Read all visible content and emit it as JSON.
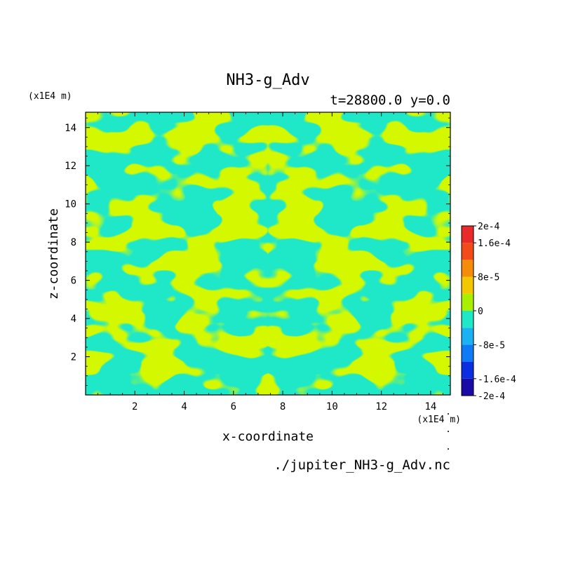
{
  "chart_data": {
    "type": "heatmap",
    "title": "NH3-g_Adv",
    "subtitle": "t=28800.0 y=0.0",
    "xlabel": "x-coordinate",
    "ylabel": "z-coordinate",
    "x_unit": "(x1E4 m)",
    "y_unit": "(x1E4 m)",
    "xlim": [
      0.0,
      14.8
    ],
    "ylim": [
      0.0,
      14.8
    ],
    "x_ticks": [
      "2",
      "4",
      "6",
      "8",
      "10",
      "12",
      "14"
    ],
    "y_ticks": [
      "2",
      "4",
      "6",
      "8",
      "10",
      "12",
      "14"
    ],
    "x_tick_values": [
      2,
      4,
      6,
      8,
      10,
      12,
      14
    ],
    "y_tick_values": [
      2,
      4,
      6,
      8,
      10,
      12,
      14
    ],
    "source_file": "./jupiter_NH3-g_Adv.nc",
    "field_note": "field mirror-symmetric about x=7.4; values alternate between the 0..4e-5 (yellow-green) and -4e-5..0 (cyan) contour bands",
    "colorbar": {
      "levels": [
        -0.0002,
        -0.00016,
        -0.00012,
        -8e-05,
        -4e-05,
        0,
        4e-05,
        8e-05,
        0.00012,
        0.00016,
        0.0002
      ],
      "colors": [
        "#1a0aa6",
        "#0a2ee0",
        "#0f7af5",
        "#1ab2f2",
        "#1ee8c8",
        "#a8f000",
        "#f2c800",
        "#f58c0a",
        "#f24a1a",
        "#e82a2a"
      ],
      "labels": [
        {
          "text": "2e-4",
          "value": 0.0002
        },
        {
          "text": "1.6e-4",
          "value": 0.00016
        },
        {
          "text": "8e-5",
          "value": 8e-05
        },
        {
          "text": "0",
          "value": 0
        },
        {
          "text": "-8e-5",
          "value": -8e-05
        },
        {
          "text": "-1.6e-4",
          "value": -0.00016
        },
        {
          "text": "-2e-4",
          "value": -0.0002
        }
      ]
    },
    "colors": {
      "positive_band": "#a8f000",
      "negative_band": "#1ee8c8",
      "frame": "#000000"
    }
  }
}
